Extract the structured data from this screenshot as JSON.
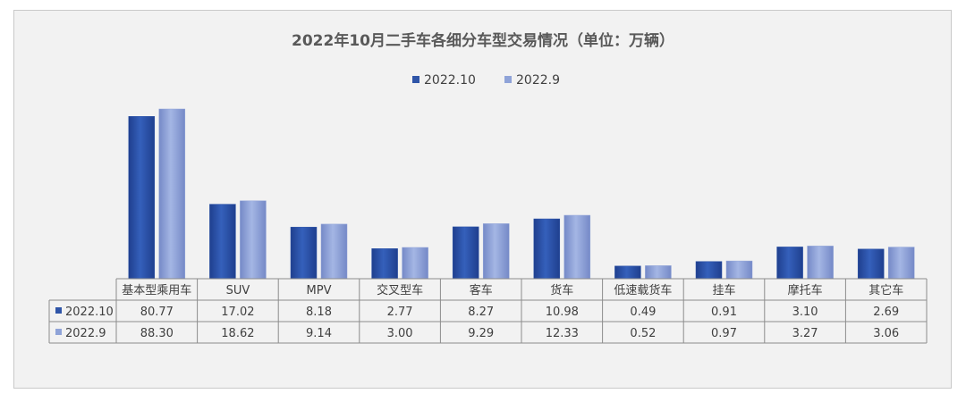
{
  "chart_data": {
    "type": "bar",
    "title": "2022年10月二手车各细分车型交易情况（单位：万辆）",
    "categories": [
      "基本型乘用车",
      "SUV",
      "MPV",
      "交叉型车",
      "客车",
      "货车",
      "低速载货车",
      "挂车",
      "摩托车",
      "其它车"
    ],
    "series": [
      {
        "name": "2022.10",
        "color": "#2f55a8",
        "values": [
          80.77,
          17.02,
          8.18,
          2.77,
          8.27,
          10.98,
          0.49,
          0.91,
          3.1,
          2.69
        ],
        "labels": [
          "80.77",
          "17.02",
          "8.18",
          "2.77",
          "8.27",
          "10.98",
          "0.49",
          "0.91",
          "3.10",
          "2.69"
        ]
      },
      {
        "name": "2022.9",
        "color": "#8fa3d8",
        "values": [
          88.3,
          18.62,
          9.14,
          3.0,
          9.29,
          12.33,
          0.52,
          0.97,
          3.27,
          3.06
        ],
        "labels": [
          "88.30",
          "18.62",
          "9.14",
          "3.00",
          "9.29",
          "12.33",
          "0.52",
          "0.97",
          "3.27",
          "3.06"
        ]
      }
    ],
    "legend": "top-center",
    "grid": false,
    "data_table": true
  }
}
